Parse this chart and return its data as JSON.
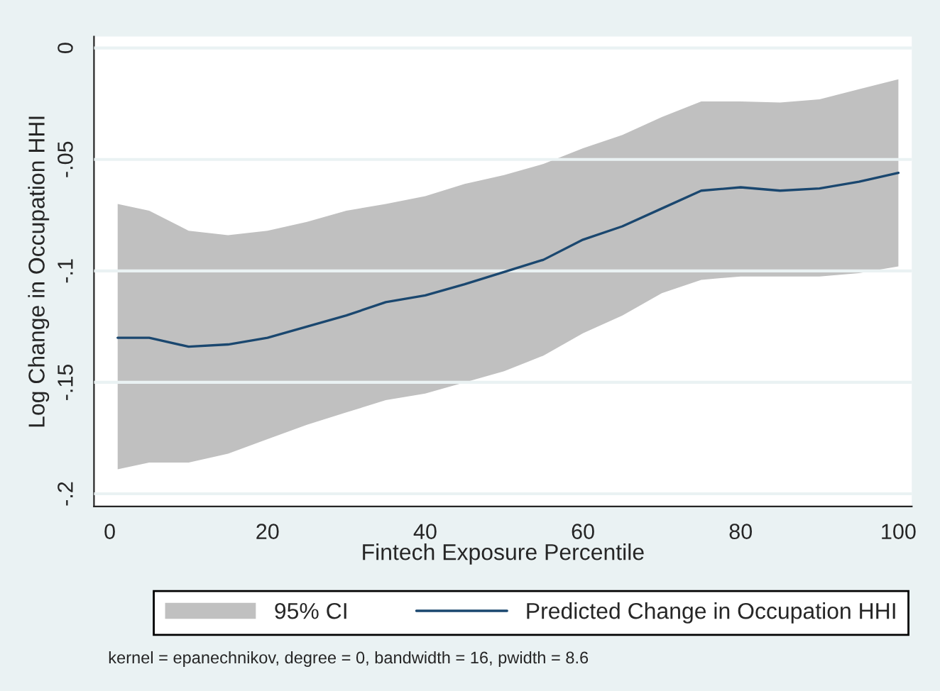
{
  "chart_data": {
    "type": "line",
    "xlabel": "Fintech Exposure Percentile",
    "ylabel": "Log Change in Occupation HHI",
    "x": [
      1,
      5,
      10,
      15,
      20,
      25,
      30,
      35,
      40,
      45,
      50,
      55,
      60,
      65,
      70,
      75,
      80,
      85,
      90,
      95,
      100
    ],
    "series": [
      {
        "name": "95% CI",
        "type": "area",
        "color": "#c0c0c0",
        "values": [
          null,
          null,
          null,
          null,
          null,
          null,
          null,
          null,
          null,
          null,
          null,
          null,
          null,
          null,
          null,
          null,
          null,
          null,
          null,
          null,
          null
        ],
        "lower": [
          -0.189,
          -0.186,
          -0.186,
          -0.182,
          -0.1755,
          -0.169,
          -0.1635,
          -0.158,
          -0.155,
          -0.15,
          -0.145,
          -0.138,
          -0.128,
          -0.12,
          -0.11,
          -0.104,
          -0.1025,
          -0.1025,
          -0.1025,
          -0.101,
          -0.098
        ],
        "upper": [
          -0.07,
          -0.073,
          -0.082,
          -0.084,
          -0.082,
          -0.078,
          -0.073,
          -0.07,
          -0.0665,
          -0.061,
          -0.057,
          -0.052,
          -0.045,
          -0.039,
          -0.031,
          -0.024,
          -0.024,
          -0.0245,
          -0.023,
          -0.0185,
          -0.014
        ]
      },
      {
        "name": "Predicted Change in Occupation HHI",
        "color": "#1a476f",
        "values": [
          -0.13,
          -0.13,
          -0.134,
          -0.133,
          -0.13,
          -0.125,
          -0.12,
          -0.114,
          -0.111,
          -0.106,
          -0.1005,
          -0.095,
          -0.086,
          -0.08,
          -0.072,
          -0.064,
          -0.0625,
          -0.064,
          -0.063,
          -0.06,
          -0.056
        ]
      }
    ],
    "xlim": [
      -2,
      101.7
    ],
    "xticks": [
      0,
      20,
      40,
      60,
      80,
      100
    ],
    "ylim": [
      -0.2057,
      0.0051
    ],
    "yticks": [
      {
        "value": 0,
        "label": "0"
      },
      {
        "value": -0.05,
        "label": "-.05"
      },
      {
        "value": -0.1,
        "label": "-.1"
      },
      {
        "value": -0.15,
        "label": "-.15"
      },
      {
        "value": -0.2,
        "label": "-.2"
      }
    ],
    "grid": "y",
    "legend": "bottom",
    "marker": "none",
    "line_style": "solid",
    "annotations": [
      "kernel = epanechnikov, degree = 0, bandwidth = 16, pwidth = 8.6"
    ]
  }
}
